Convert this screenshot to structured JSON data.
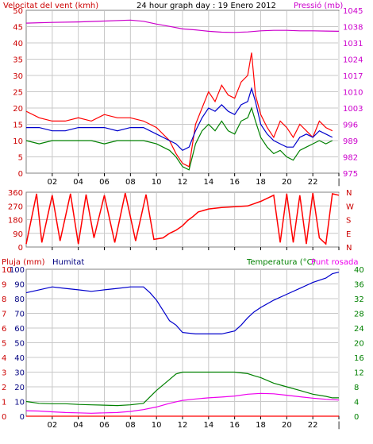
{
  "chart_data": [
    {
      "id": "wind_pressure",
      "type": "line",
      "title": "24 hour graph day : 19 Enero 2012",
      "left_label": "Velocitat del vent (kmh)",
      "right_label": "Pressió (mb)",
      "x_ticks": [
        "02",
        "04",
        "06",
        "08",
        "10",
        "12",
        "14",
        "16",
        "18",
        "20",
        "22",
        ""
      ],
      "y_left": {
        "ticks": [
          0,
          5,
          10,
          15,
          20,
          25,
          30,
          35,
          40,
          45,
          50
        ],
        "lim": [
          0,
          50
        ]
      },
      "y_right": {
        "ticks": [
          975,
          982,
          989,
          996,
          1003,
          1010,
          1017,
          1024,
          1031,
          1038,
          1045
        ],
        "lim": [
          975,
          1045
        ]
      },
      "grid": true,
      "series": [
        {
          "key": "gust",
          "color": "#ff0000",
          "axis": "left",
          "x": [
            0,
            1,
            2,
            3,
            4,
            5,
            6,
            7,
            8,
            9,
            10,
            11,
            11.5,
            12,
            12.5,
            13,
            13.5,
            14,
            14.5,
            15,
            15.5,
            16,
            16.5,
            17,
            17.3,
            17.6,
            18,
            18.5,
            19,
            19.5,
            20,
            20.5,
            21,
            21.5,
            22,
            22.5,
            23,
            23.5
          ],
          "y": [
            19,
            17,
            16,
            16,
            17,
            16,
            18,
            17,
            17,
            16,
            14,
            10,
            6,
            3,
            2,
            15,
            20,
            25,
            22,
            27,
            24,
            23,
            28,
            30,
            37,
            24,
            18,
            14,
            11,
            16,
            14,
            11,
            15,
            13,
            11,
            16,
            14,
            13
          ]
        },
        {
          "key": "avg",
          "color": "#0000cc",
          "axis": "left",
          "x": [
            0,
            1,
            2,
            3,
            4,
            5,
            6,
            7,
            8,
            9,
            10,
            11,
            11.5,
            12,
            12.5,
            13,
            13.5,
            14,
            14.5,
            15,
            15.5,
            16,
            16.5,
            17,
            17.3,
            17.6,
            18,
            18.5,
            19,
            19.5,
            20,
            20.5,
            21,
            21.5,
            22,
            22.5,
            23,
            23.5
          ],
          "y": [
            14,
            14,
            13,
            13,
            14,
            14,
            14,
            13,
            14,
            14,
            12,
            10,
            9,
            7,
            8,
            13,
            17,
            20,
            19,
            21,
            19,
            18,
            21,
            22,
            26,
            22,
            15,
            12,
            10,
            9,
            8,
            8,
            11,
            12,
            11,
            13,
            12,
            11
          ]
        },
        {
          "key": "min",
          "color": "#008000",
          "axis": "left",
          "x": [
            0,
            1,
            2,
            3,
            4,
            5,
            6,
            7,
            8,
            9,
            10,
            11,
            11.5,
            12,
            12.5,
            13,
            13.5,
            14,
            14.5,
            15,
            15.5,
            16,
            16.5,
            17,
            17.3,
            17.6,
            18,
            18.5,
            19,
            19.5,
            20,
            20.5,
            21,
            21.5,
            22,
            22.5,
            23,
            23.5
          ],
          "y": [
            10,
            9,
            10,
            10,
            10,
            10,
            9,
            10,
            10,
            10,
            9,
            7,
            5,
            2,
            1,
            9,
            13,
            15,
            13,
            16,
            13,
            12,
            16,
            17,
            20,
            16,
            11,
            8,
            6,
            7,
            5,
            4,
            7,
            8,
            9,
            10,
            9,
            10
          ]
        },
        {
          "key": "pressure",
          "color": "#cc00cc",
          "axis": "right",
          "x": [
            0,
            2,
            4,
            6,
            8,
            9,
            10,
            11,
            12,
            13,
            14,
            15,
            16,
            17,
            18,
            19,
            20,
            21,
            22,
            23,
            24
          ],
          "y": [
            1039.5,
            1039.8,
            1040,
            1040.4,
            1040.8,
            1040.3,
            1039.1,
            1038.1,
            1037,
            1036.6,
            1036,
            1035.6,
            1035.5,
            1035.7,
            1036.2,
            1036.4,
            1036.4,
            1036.2,
            1036.2,
            1036.1,
            1036
          ]
        }
      ]
    },
    {
      "id": "wind_direction",
      "type": "line",
      "x_ticks": [
        "02",
        "04",
        "06",
        "08",
        "10",
        "12",
        "14",
        "16",
        "18",
        "20",
        "22",
        ""
      ],
      "y_left": {
        "ticks": [
          0,
          90,
          180,
          270,
          360
        ],
        "lim": [
          0,
          360
        ]
      },
      "right_labels": [
        "N",
        "W",
        "S",
        "E",
        "N"
      ],
      "grid": true,
      "series": [
        {
          "key": "direction",
          "color": "#ff0000",
          "x": [
            0,
            0.8,
            1.2,
            2,
            2.6,
            3.4,
            4,
            4.6,
            5.2,
            6,
            6.8,
            7.6,
            8.4,
            9.2,
            9.8,
            10.5,
            11,
            11.5,
            12,
            12.4,
            12.8,
            13.2,
            13.6,
            14,
            15,
            16,
            17,
            17.5,
            18,
            18.5,
            19,
            19.5,
            20,
            20.5,
            21,
            21.5,
            22,
            22.5,
            23,
            23.5,
            24
          ],
          "y": [
            20,
            350,
            30,
            340,
            40,
            350,
            20,
            345,
            60,
            340,
            30,
            355,
            40,
            345,
            50,
            60,
            90,
            110,
            140,
            175,
            200,
            230,
            240,
            250,
            260,
            265,
            270,
            285,
            300,
            320,
            340,
            30,
            350,
            30,
            340,
            20,
            355,
            60,
            20,
            350,
            340
          ]
        }
      ]
    },
    {
      "id": "rain_humidity_temp",
      "type": "line",
      "left_label_1": "Pluja (mm)",
      "left_label_2": "Humitat",
      "right_label_1": "Temperatura (°C)",
      "right_label_2": "Punt rosada",
      "x_ticks": [
        "02",
        "04",
        "06",
        "08",
        "10",
        "12",
        "14",
        "16",
        "18",
        "20",
        "22",
        ""
      ],
      "y_rain": {
        "ticks": [
          0,
          1,
          2,
          3,
          4,
          5,
          6,
          7,
          8,
          9,
          10
        ],
        "lim": [
          0,
          10
        ]
      },
      "y_humidity": {
        "ticks": [
          0,
          10,
          20,
          30,
          40,
          50,
          60,
          70,
          80,
          90,
          100
        ],
        "lim": [
          0,
          100
        ]
      },
      "y_temp": {
        "ticks": [
          0,
          4,
          8,
          12,
          16,
          20,
          24,
          28,
          32,
          36,
          40
        ],
        "lim": [
          0,
          40
        ]
      },
      "grid": true,
      "series": [
        {
          "key": "humidity",
          "color": "#0000cc",
          "axis": "humidity",
          "x": [
            0,
            1,
            2,
            3,
            4,
            5,
            6,
            7,
            8,
            9,
            9.5,
            10,
            10.5,
            11,
            11.5,
            12,
            13,
            14,
            15,
            16,
            16.5,
            17,
            17.5,
            18,
            19,
            20,
            21,
            22,
            23,
            23.5,
            24
          ],
          "y": [
            84,
            86,
            88,
            87,
            86,
            85,
            86,
            87,
            88,
            88,
            84,
            79,
            72,
            65,
            62,
            57,
            56,
            56,
            56,
            58,
            62,
            67,
            71,
            74,
            79,
            83,
            87,
            91,
            94,
            97,
            98
          ]
        },
        {
          "key": "temperature",
          "color": "#008000",
          "axis": "temp",
          "x": [
            0,
            1,
            2,
            3,
            4,
            5,
            6,
            7,
            8,
            9,
            10,
            10.5,
            11,
            11.5,
            12,
            13,
            14,
            15,
            16,
            17,
            17.5,
            18,
            19,
            20,
            21,
            22,
            23,
            23.5,
            24
          ],
          "y": [
            4,
            3.5,
            3.4,
            3.4,
            3.2,
            3.1,
            3,
            2.9,
            3.1,
            3.5,
            7,
            8.5,
            10,
            11.5,
            12,
            12,
            12,
            12,
            12,
            11.6,
            11,
            10.5,
            9,
            8,
            7,
            6,
            5.4,
            5,
            5
          ]
        },
        {
          "key": "dewpoint",
          "color": "#ee00ee",
          "axis": "temp",
          "x": [
            0,
            1,
            2,
            3,
            4,
            5,
            6,
            7,
            8,
            9,
            10,
            11,
            12,
            13,
            14,
            15,
            16,
            17,
            18,
            19,
            20,
            21,
            22,
            23,
            24
          ],
          "y": [
            1.5,
            1.4,
            1.2,
            1.0,
            0.9,
            0.8,
            0.9,
            1.0,
            1.3,
            1.8,
            2.5,
            3.5,
            4.3,
            4.7,
            5,
            5.2,
            5.5,
            6,
            6.2,
            6.1,
            5.7,
            5.3,
            4.9,
            4.6,
            4.4
          ]
        },
        {
          "key": "rain",
          "color": "#ff0000",
          "axis": "rain",
          "x": [
            0,
            24
          ],
          "y": [
            0,
            0
          ]
        }
      ]
    }
  ]
}
